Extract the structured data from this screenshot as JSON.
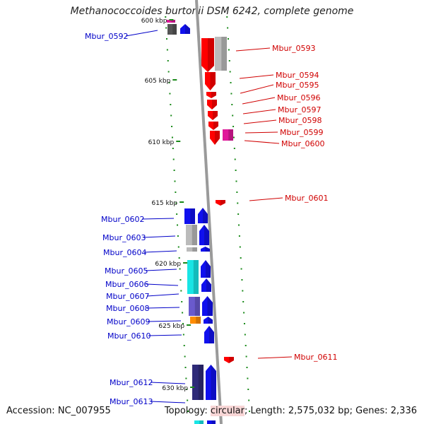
{
  "header": {
    "title": "Methanococcoides burtonii DSM 6242, complete genome"
  },
  "footer": {
    "accession": "Accession: NC_007955",
    "topology_prefix": "Topology: ",
    "topology_word": "circular",
    "topology_suffix": "; Length: 2,575,032 bp; Genes: 2,336"
  },
  "colors": {
    "backbone": "#9a9a9a",
    "tick": "#1a8a1a",
    "forward_label": "#d00000",
    "reverse_label": "#0000c8",
    "red": "#ff0000",
    "blue": "#1010ee",
    "gray": "#bbbbbb",
    "dark_gray": "#555555",
    "magenta": "#e0199a",
    "cyan": "#19e5e5",
    "slate": "#6a5acd",
    "orange": "#ff8c00",
    "navy": "#2e2a78"
  },
  "scale_labels": [
    "600 kbp",
    "605 kbp",
    "610 kbp",
    "615 kbp",
    "620 kbp",
    "625 kbp",
    "630 kbp"
  ],
  "left_labels": [
    "Mbur_0592",
    "Mbur_0602",
    "Mbur_0603",
    "Mbur_0604",
    "Mbur_0605",
    "Mbur_0606",
    "Mbur_0607",
    "Mbur_0608",
    "Mbur_0609",
    "Mbur_0610",
    "Mbur_0612",
    "Mbur_0613"
  ],
  "right_labels": [
    "Mbur_0593",
    "Mbur_0594",
    "Mbur_0595",
    "Mbur_0596",
    "Mbur_0597",
    "Mbur_0598",
    "Mbur_0599",
    "Mbur_0600",
    "Mbur_0601",
    "Mbur_0611"
  ]
}
